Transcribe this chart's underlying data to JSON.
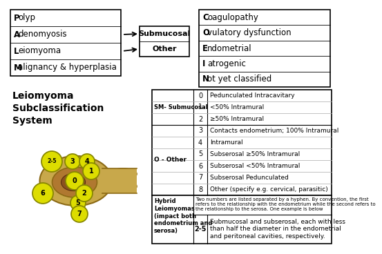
{
  "background_color": "#ffffff",
  "top_left_box": {
    "items": [
      "Polyp",
      "Adenomyosis",
      "Leiomyoma",
      "Malignancy & hyperplasia"
    ],
    "bold_chars": [
      "P",
      "A",
      "L",
      "M"
    ]
  },
  "middle_box": {
    "items": [
      "Submucosal",
      "Other"
    ]
  },
  "top_right_box": {
    "items": [
      "Coagulopathy",
      "Ovulatory dysfunction",
      "Endometrial",
      "Iatrogenic",
      "Not yet classified"
    ],
    "bold_chars": [
      "C",
      "O",
      "E",
      "I",
      "N"
    ]
  },
  "section_title": "Leiomyoma\nSubclassification\nSystem",
  "table_header_sm": "SM- Submucosal",
  "table_header_o": "O - Other",
  "table_rows": [
    {
      "num": "0",
      "desc": "Pedunculated Intracavitary"
    },
    {
      "num": "1",
      "desc": "<50% Intramural"
    },
    {
      "num": "2",
      "desc": "≥50% Intramural"
    },
    {
      "num": "3",
      "desc": "Contacts endometrium; 100% Intramural"
    },
    {
      "num": "4",
      "desc": "Intramural"
    },
    {
      "num": "5",
      "desc": "Subserosal ≥50% Intramural"
    },
    {
      "num": "6",
      "desc": "Subserosal <50% Intramural"
    },
    {
      "num": "7",
      "desc": "Subserosal Pedunculated"
    },
    {
      "num": "8",
      "desc": "Other (specify e.g. cervical, parasitic)"
    }
  ],
  "hybrid_title": "Hybrid\nLeiomyomas\n(impact both\nendometrium and\nserosa)",
  "hybrid_note": "Two numbers are listed separated by a hyphen. By convention, the first\nrefers to the relationship with the endometrium while the second refers to\nthe relationship to the serosa. One example is below",
  "hybrid_num": "2-5",
  "hybrid_desc": "Submucosal and subserosal, each with less\nthan half the diameter in the endometrial\nand peritoneal cavities, respectively.",
  "fibroid_color": "#dddd00",
  "fibroid_edge": "#888800",
  "uterus_fill": "#c8a84b",
  "uterus_edge": "#8b6914",
  "uterus_inner": "#b07830",
  "cavity_fill": "#8b5020"
}
